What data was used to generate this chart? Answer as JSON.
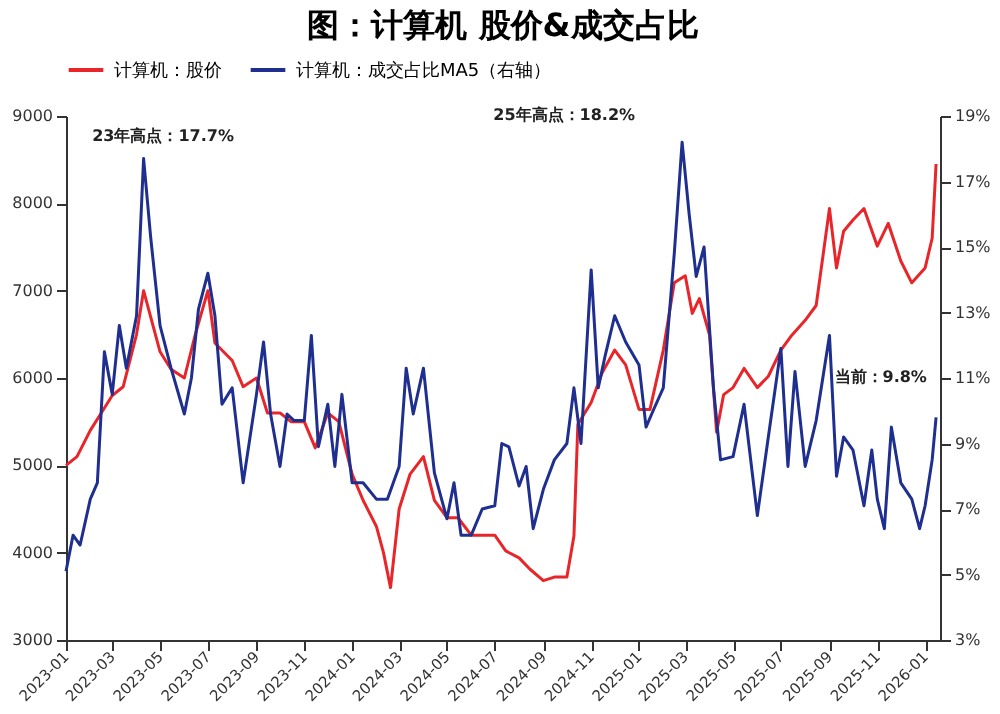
{
  "chart_data": {
    "type": "line",
    "title": "图：计算机 股价&成交占比",
    "xlim": [
      "2023-01-01",
      "2026-01-20"
    ],
    "xticks": [
      {
        "value": "2023-01-01",
        "label": "2023-01"
      },
      {
        "value": "2023-03-01",
        "label": "2023-03"
      },
      {
        "value": "2023-05-01",
        "label": "2023-05"
      },
      {
        "value": "2023-07-01",
        "label": "2023-07"
      },
      {
        "value": "2023-09-01",
        "label": "2023-09"
      },
      {
        "value": "2023-11-01",
        "label": "2023-11"
      },
      {
        "value": "2024-01-01",
        "label": "2024-01"
      },
      {
        "value": "2024-03-01",
        "label": "2024-03"
      },
      {
        "value": "2024-05-01",
        "label": "2024-05"
      },
      {
        "value": "2024-07-01",
        "label": "2024-07"
      },
      {
        "value": "2024-09-01",
        "label": "2024-09"
      },
      {
        "value": "2024-11-01",
        "label": "2024-11"
      },
      {
        "value": "2025-01-01",
        "label": "2025-01"
      },
      {
        "value": "2025-03-01",
        "label": "2025-03"
      },
      {
        "value": "2025-05-01",
        "label": "2025-05"
      },
      {
        "value": "2025-07-01",
        "label": "2025-07"
      },
      {
        "value": "2025-09-01",
        "label": "2025-09"
      },
      {
        "value": "2025-11-01",
        "label": "2025-11"
      },
      {
        "value": "2026-01-01",
        "label": "2026-01"
      }
    ],
    "ylim": [
      3000,
      9000
    ],
    "yticks": [
      3000,
      4000,
      5000,
      6000,
      7000,
      8000,
      9000
    ],
    "y2lim": [
      3,
      19
    ],
    "y2ticks": [
      {
        "value": 3,
        "label": "3%"
      },
      {
        "value": 5,
        "label": "5%"
      },
      {
        "value": 7,
        "label": "7%"
      },
      {
        "value": 9,
        "label": "9%"
      },
      {
        "value": 11,
        "label": "11%"
      },
      {
        "value": 13,
        "label": "13%"
      },
      {
        "value": 15,
        "label": "15%"
      },
      {
        "value": 17,
        "label": "17%"
      },
      {
        "value": 19,
        "label": "19%"
      }
    ],
    "grid": false,
    "legend": "top",
    "annotations": [
      "23年高点：17.7%",
      "25年高点：18.2%",
      "当前：9.8%"
    ],
    "series": [
      {
        "name": "计算机：股价",
        "color": "#e8262a",
        "x": [
          "2023-01-01",
          "2023-01-15",
          "2023-02-01",
          "2023-02-15",
          "2023-03-01",
          "2023-03-15",
          "2023-04-01",
          "2023-04-10",
          "2023-04-19",
          "2023-05-01",
          "2023-05-15",
          "2023-06-01",
          "2023-06-15",
          "2023-07-01",
          "2023-07-10",
          "2023-08-01",
          "2023-08-15",
          "2023-09-01",
          "2023-09-15",
          "2023-10-01",
          "2023-10-15",
          "2023-11-01",
          "2023-11-15",
          "2023-12-01",
          "2023-12-15",
          "2024-01-01",
          "2024-01-15",
          "2024-02-01",
          "2024-02-10",
          "2024-02-19",
          "2024-03-01",
          "2024-03-15",
          "2024-04-01",
          "2024-04-15",
          "2024-05-01",
          "2024-05-15",
          "2024-06-01",
          "2024-06-15",
          "2024-07-01",
          "2024-07-15",
          "2024-08-01",
          "2024-08-15",
          "2024-09-01",
          "2024-09-15",
          "2024-10-01",
          "2024-10-10",
          "2024-10-15",
          "2024-11-01",
          "2024-11-15",
          "2024-12-01",
          "2024-12-15",
          "2025-01-01",
          "2025-01-15",
          "2025-02-01",
          "2025-02-15",
          "2025-03-01",
          "2025-03-10",
          "2025-03-19",
          "2025-04-01",
          "2025-04-10",
          "2025-04-19",
          "2025-05-01",
          "2025-05-15",
          "2025-06-01",
          "2025-06-15",
          "2025-07-01",
          "2025-07-15",
          "2025-08-01",
          "2025-08-15",
          "2025-09-01",
          "2025-09-10",
          "2025-09-19",
          "2025-10-01",
          "2025-10-15",
          "2025-11-01",
          "2025-11-15",
          "2025-12-01",
          "2025-12-15",
          "2026-01-01",
          "2026-01-10",
          "2026-01-15"
        ],
        "values": [
          5000,
          5100,
          5400,
          5600,
          5800,
          5900,
          6500,
          7000,
          6700,
          6300,
          6100,
          6000,
          6500,
          7000,
          6400,
          6200,
          5900,
          6000,
          5600,
          5600,
          5500,
          5500,
          5200,
          5600,
          5500,
          4900,
          4600,
          4300,
          4000,
          3600,
          4500,
          4900,
          5100,
          4600,
          4400,
          4400,
          4200,
          4200,
          4200,
          4020,
          3940,
          3810,
          3680,
          3720,
          3720,
          4190,
          5470,
          5720,
          6060,
          6320,
          6150,
          5640,
          5640,
          6320,
          7090,
          7170,
          6740,
          6910,
          6490,
          5380,
          5810,
          5890,
          6110,
          5890,
          6020,
          6320,
          6490,
          6660,
          6830,
          7940,
          7260,
          7680,
          7810,
          7940,
          7510,
          7770,
          7340,
          7090,
          7260,
          7600,
          8450
        ]
      },
      {
        "name": "计算机：成交占比MA5（右轴）",
        "color": "#1f2f8f",
        "axis": "y2",
        "x": [
          "2023-01-01",
          "2023-01-10",
          "2023-01-19",
          "2023-02-01",
          "2023-02-10",
          "2023-02-19",
          "2023-03-01",
          "2023-03-10",
          "2023-03-19",
          "2023-04-01",
          "2023-04-10",
          "2023-04-19",
          "2023-05-01",
          "2023-05-15",
          "2023-06-01",
          "2023-06-10",
          "2023-06-19",
          "2023-07-01",
          "2023-07-10",
          "2023-07-19",
          "2023-08-01",
          "2023-08-15",
          "2023-09-01",
          "2023-09-10",
          "2023-09-19",
          "2023-10-01",
          "2023-10-10",
          "2023-10-19",
          "2023-11-01",
          "2023-11-10",
          "2023-11-19",
          "2023-12-01",
          "2023-12-10",
          "2023-12-19",
          "2024-01-01",
          "2024-01-15",
          "2024-02-01",
          "2024-02-15",
          "2024-03-01",
          "2024-03-10",
          "2024-03-19",
          "2024-04-01",
          "2024-04-15",
          "2024-05-01",
          "2024-05-10",
          "2024-05-19",
          "2024-06-01",
          "2024-06-15",
          "2024-07-01",
          "2024-07-10",
          "2024-07-19",
          "2024-08-01",
          "2024-08-10",
          "2024-08-19",
          "2024-09-01",
          "2024-09-15",
          "2024-10-01",
          "2024-10-10",
          "2024-10-19",
          "2024-11-01",
          "2024-11-10",
          "2024-11-19",
          "2024-12-01",
          "2024-12-15",
          "2025-01-01",
          "2025-01-10",
          "2025-01-19",
          "2025-02-01",
          "2025-02-15",
          "2025-02-25",
          "2025-03-06",
          "2025-03-15",
          "2025-03-25",
          "2025-04-06",
          "2025-04-15",
          "2025-05-01",
          "2025-05-15",
          "2025-06-01",
          "2025-06-15",
          "2025-07-01",
          "2025-07-10",
          "2025-07-19",
          "2025-08-01",
          "2025-08-15",
          "2025-09-01",
          "2025-09-10",
          "2025-09-19",
          "2025-10-01",
          "2025-10-15",
          "2025-10-25",
          "2025-11-01",
          "2025-11-10",
          "2025-11-19",
          "2025-12-01",
          "2025-12-15",
          "2025-12-25",
          "2026-01-01",
          "2026-01-10",
          "2026-01-15"
        ],
        "values": [
          5.1,
          6.2,
          5.9,
          7.3,
          7.8,
          11.8,
          10.5,
          12.6,
          11.3,
          12.9,
          17.7,
          15.3,
          12.6,
          11.3,
          9.9,
          11.0,
          13.1,
          14.2,
          12.9,
          10.2,
          10.7,
          7.8,
          10.5,
          12.1,
          9.9,
          8.3,
          9.9,
          9.7,
          9.7,
          12.3,
          8.9,
          10.2,
          8.3,
          10.5,
          7.8,
          7.8,
          7.3,
          7.3,
          8.3,
          11.3,
          9.9,
          11.3,
          8.1,
          6.7,
          7.8,
          6.2,
          6.2,
          7.0,
          7.1,
          9.0,
          8.9,
          7.7,
          8.3,
          6.4,
          7.6,
          8.5,
          9.0,
          10.7,
          9.0,
          14.3,
          10.7,
          11.7,
          12.9,
          12.1,
          11.4,
          9.5,
          10.0,
          10.7,
          14.8,
          18.2,
          16.0,
          14.1,
          15.0,
          10.7,
          8.5,
          8.6,
          10.2,
          6.8,
          9.2,
          11.9,
          8.3,
          11.2,
          8.3,
          9.7,
          12.3,
          8.0,
          9.2,
          8.8,
          7.1,
          8.8,
          7.3,
          6.4,
          9.5,
          7.8,
          7.3,
          6.4,
          7.1,
          8.5,
          9.8
        ]
      }
    ]
  }
}
